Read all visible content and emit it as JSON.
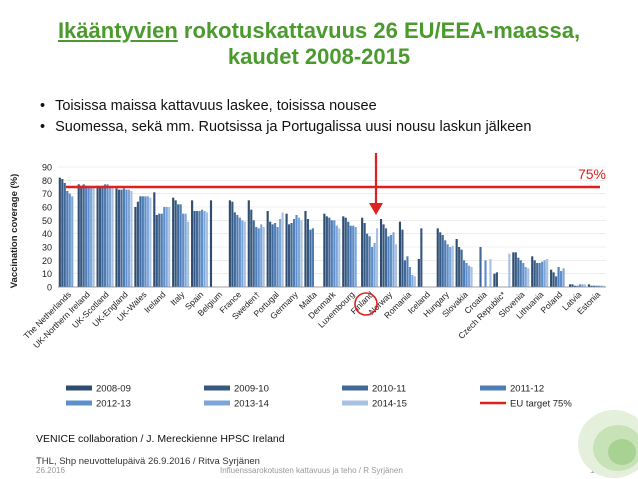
{
  "slide": {
    "title_underlined": "Ikääntyvien",
    "title_rest": " rokotuskattavuus 26 EU/EEA-maassa,",
    "title_line2": "kaudet 2008-2015",
    "bullets": [
      "Toisissa maissa kattavuus laskee, toisissa nousee",
      "Suomessa, sekä mm. Ruotsissa ja Portugalissa uusi nousu laskun jälkeen"
    ],
    "target_label": "75%",
    "source": "VENICE collaboration / J. Mereckienne HPSC Ireland",
    "thl_note": "THL, Shp neuvottelupäivä 26.9.2016 / Ritva Syrjänen",
    "footer_date": "26.2016",
    "footer_center": "Influenssarokotusten kattavuus ja teho / R Syrjänen",
    "page_number": "15"
  },
  "colors": {
    "title": "#4a9a2e",
    "target_line": "#e0201e",
    "arrow": "#e0201e",
    "highlight_circle": "#e0201e",
    "series": [
      "#2e4d70",
      "#36587f",
      "#41689a",
      "#4f7db6",
      "#5e8fcc",
      "#7ea5d8",
      "#a8c0e2"
    ]
  },
  "chart_data": {
    "type": "bar",
    "ylabel": "Vaccination coverage (%)",
    "ylim": [
      0,
      90
    ],
    "yticks": [
      0,
      10,
      20,
      30,
      40,
      50,
      60,
      70,
      80,
      90
    ],
    "highlight_category": "Finland",
    "categories": [
      "The Netherlands",
      "UK-Northern Ireland",
      "UK-Scotland",
      "UK-England",
      "UK-Wales",
      "Ireland",
      "Italy",
      "Spain",
      "Belgium",
      "France",
      "Sweden†",
      "Portugal",
      "Germany",
      "Malta",
      "Denmark",
      "Luxembourg",
      "Finland",
      "Norway",
      "Romania",
      "Iceland",
      "Hungary",
      "Slovakia",
      "Croatia",
      "Czech Republic*",
      "Slovenia",
      "Lithuania",
      "Poland",
      "Latvia",
      "Estonia"
    ],
    "series": [
      {
        "name": "2008-09",
        "values": [
          82,
          77,
          76,
          74,
          60,
          71,
          67,
          65,
          65,
          65,
          65,
          57,
          55,
          57,
          55,
          53,
          52,
          51,
          49,
          21,
          44,
          36,
          null,
          10,
          26,
          23,
          13,
          2,
          2
        ]
      },
      {
        "name": "2009-10",
        "values": [
          81,
          76,
          75,
          73,
          64,
          54,
          65,
          57,
          null,
          64,
          58,
          49,
          47,
          51,
          53,
          52,
          48,
          47,
          43,
          44,
          41,
          30,
          null,
          11,
          26,
          20,
          11,
          2,
          1
        ]
      },
      {
        "name": "2010-11",
        "values": [
          78,
          77,
          76,
          73,
          68,
          55,
          62,
          57,
          null,
          56,
          50,
          47,
          48,
          43,
          52,
          49,
          40,
          44,
          20,
          null,
          39,
          28,
          30,
          null,
          22,
          18,
          8,
          1,
          1
        ]
      },
      {
        "name": "2011-12",
        "values": [
          72,
          76,
          77,
          74,
          68,
          55,
          62,
          57,
          null,
          54,
          45,
          48,
          51,
          44,
          50,
          46,
          38,
          38,
          23,
          null,
          35,
          20,
          null,
          null,
          20,
          18,
          15,
          1,
          1
        ]
      },
      {
        "name": "2012-13",
        "values": [
          70,
          76,
          77,
          73,
          68,
          60,
          55,
          58,
          null,
          52,
          44,
          45,
          54,
          null,
          50,
          46,
          30,
          39,
          15,
          null,
          32,
          18,
          20,
          null,
          18,
          19,
          12,
          2,
          1
        ]
      },
      {
        "name": "2013-14",
        "values": [
          68,
          75,
          75,
          73,
          68,
          60,
          55,
          57,
          null,
          50,
          47,
          51,
          52,
          null,
          46,
          45,
          33,
          41,
          9,
          null,
          30,
          16,
          null,
          null,
          15,
          20,
          14,
          2,
          1
        ]
      },
      {
        "name": "2014-15",
        "values": [
          null,
          75,
          74,
          72,
          67,
          60,
          49,
          56,
          null,
          49,
          45,
          56,
          50,
          null,
          44,
          null,
          44,
          32,
          8,
          null,
          31,
          15,
          21,
          25,
          14,
          21,
          null,
          2,
          1
        ]
      }
    ],
    "target": {
      "name": "EU target 75%",
      "value": 75
    }
  }
}
